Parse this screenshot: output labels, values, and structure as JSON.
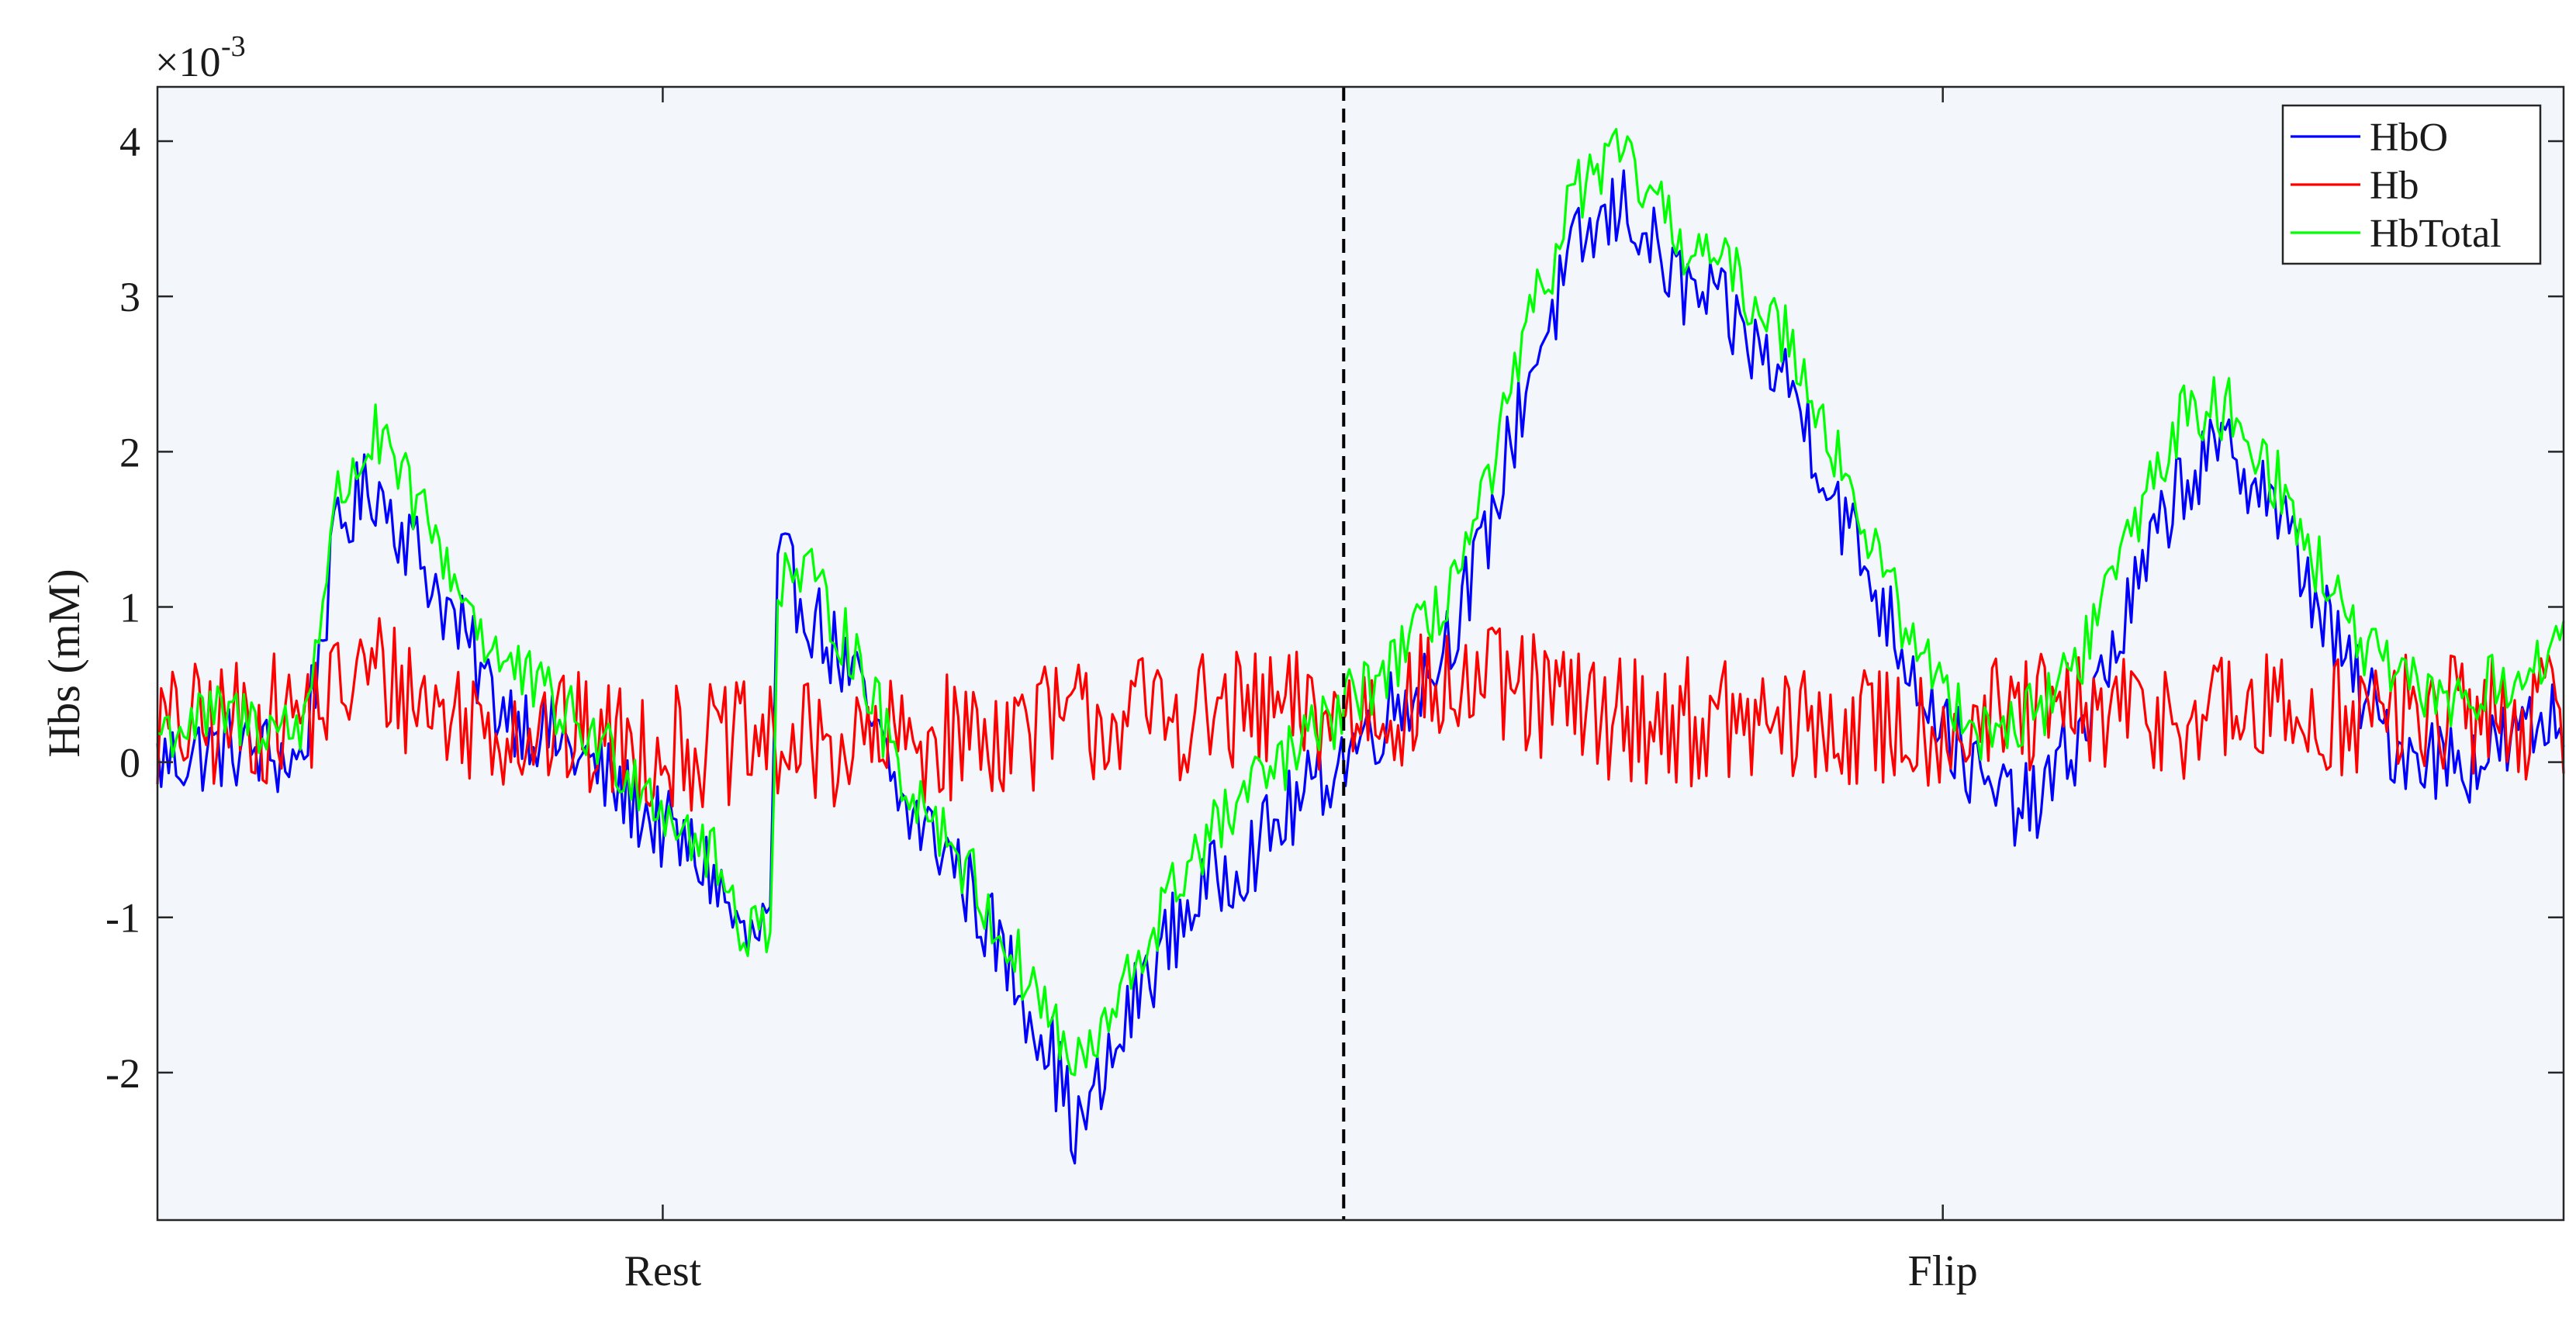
{
  "chart_data": {
    "type": "line",
    "title": "",
    "xlabel": "",
    "ylabel": "Hbs (mM)",
    "y_exponent_label": "×10",
    "y_exponent_power": "-3",
    "y_scale": 0.001,
    "ylim": [
      -2.95,
      4.35
    ],
    "y_ticks": [
      -2,
      -1,
      0,
      1,
      2,
      3,
      4
    ],
    "y_tick_labels": [
      "-2",
      "-1",
      "0",
      "1",
      "2",
      "3",
      "4"
    ],
    "x_range": [
      0,
      1
    ],
    "x_tick_positions": [
      0.21,
      0.742
    ],
    "x_tick_labels": [
      "Rest",
      "Flip"
    ],
    "event_marker_x": 0.493,
    "background_color": "#f3f6fb",
    "grid": false,
    "legend_position": "top-right",
    "series": [
      {
        "name": "HbO",
        "color": "#0000ff",
        "trend_points": [
          [
            0.0,
            0.0
          ],
          [
            0.03,
            0.1
          ],
          [
            0.06,
            0.0
          ],
          [
            0.075,
            1.5
          ],
          [
            0.09,
            1.8
          ],
          [
            0.11,
            1.3
          ],
          [
            0.14,
            0.4
          ],
          [
            0.17,
            0.1
          ],
          [
            0.2,
            -0.3
          ],
          [
            0.23,
            -0.7
          ],
          [
            0.245,
            -1.2
          ],
          [
            0.255,
            -1.0
          ],
          [
            0.258,
            1.3
          ],
          [
            0.27,
            1.0
          ],
          [
            0.29,
            0.5
          ],
          [
            0.31,
            -0.3
          ],
          [
            0.33,
            -0.6
          ],
          [
            0.35,
            -1.2
          ],
          [
            0.37,
            -1.8
          ],
          [
            0.382,
            -2.4
          ],
          [
            0.395,
            -2.0
          ],
          [
            0.41,
            -1.4
          ],
          [
            0.43,
            -0.9
          ],
          [
            0.46,
            -0.5
          ],
          [
            0.49,
            0.0
          ],
          [
            0.51,
            0.3
          ],
          [
            0.53,
            0.6
          ],
          [
            0.55,
            1.3
          ],
          [
            0.57,
            2.5
          ],
          [
            0.59,
            3.3
          ],
          [
            0.61,
            3.6
          ],
          [
            0.63,
            3.1
          ],
          [
            0.65,
            2.9
          ],
          [
            0.68,
            2.4
          ],
          [
            0.7,
            1.6
          ],
          [
            0.72,
            0.9
          ],
          [
            0.74,
            0.3
          ],
          [
            0.76,
            -0.2
          ],
          [
            0.78,
            -0.3
          ],
          [
            0.8,
            0.2
          ],
          [
            0.82,
            1.0
          ],
          [
            0.84,
            1.8
          ],
          [
            0.86,
            2.0
          ],
          [
            0.875,
            1.8
          ],
          [
            0.89,
            1.3
          ],
          [
            0.91,
            0.6
          ],
          [
            0.93,
            0.1
          ],
          [
            0.96,
            0.0
          ],
          [
            1.0,
            0.3
          ]
        ],
        "noise": 0.28
      },
      {
        "name": "Hb",
        "color": "#ff0000",
        "trend_points": [
          [
            0.0,
            0.2
          ],
          [
            0.06,
            0.3
          ],
          [
            0.09,
            0.6
          ],
          [
            0.12,
            0.3
          ],
          [
            0.2,
            0.1
          ],
          [
            0.3,
            0.1
          ],
          [
            0.4,
            0.3
          ],
          [
            0.49,
            0.3
          ],
          [
            0.55,
            0.5
          ],
          [
            0.6,
            0.3
          ],
          [
            0.7,
            0.2
          ],
          [
            0.8,
            0.3
          ],
          [
            0.9,
            0.3
          ],
          [
            1.0,
            0.3
          ]
        ],
        "noise": 0.42
      },
      {
        "name": "HbTotal",
        "color": "#00ff00",
        "trend_points": [
          [
            0.0,
            0.2
          ],
          [
            0.03,
            0.3
          ],
          [
            0.06,
            0.2
          ],
          [
            0.075,
            1.7
          ],
          [
            0.09,
            2.1
          ],
          [
            0.11,
            1.6
          ],
          [
            0.14,
            0.7
          ],
          [
            0.17,
            0.3
          ],
          [
            0.2,
            -0.1
          ],
          [
            0.23,
            -0.6
          ],
          [
            0.245,
            -1.1
          ],
          [
            0.255,
            -1.0
          ],
          [
            0.258,
            1.2
          ],
          [
            0.27,
            1.2
          ],
          [
            0.29,
            0.7
          ],
          [
            0.31,
            -0.1
          ],
          [
            0.33,
            -0.5
          ],
          [
            0.35,
            -1.1
          ],
          [
            0.37,
            -1.6
          ],
          [
            0.382,
            -2.0
          ],
          [
            0.395,
            -1.7
          ],
          [
            0.41,
            -1.2
          ],
          [
            0.43,
            -0.6
          ],
          [
            0.46,
            -0.1
          ],
          [
            0.49,
            0.3
          ],
          [
            0.51,
            0.6
          ],
          [
            0.53,
            0.9
          ],
          [
            0.55,
            1.6
          ],
          [
            0.57,
            2.8
          ],
          [
            0.59,
            3.7
          ],
          [
            0.61,
            3.9
          ],
          [
            0.63,
            3.4
          ],
          [
            0.65,
            3.2
          ],
          [
            0.68,
            2.7
          ],
          [
            0.7,
            1.9
          ],
          [
            0.72,
            1.1
          ],
          [
            0.74,
            0.5
          ],
          [
            0.76,
            0.2
          ],
          [
            0.78,
            0.3
          ],
          [
            0.8,
            0.7
          ],
          [
            0.82,
            1.5
          ],
          [
            0.84,
            2.2
          ],
          [
            0.86,
            2.3
          ],
          [
            0.875,
            2.0
          ],
          [
            0.89,
            1.5
          ],
          [
            0.91,
            0.9
          ],
          [
            0.93,
            0.5
          ],
          [
            0.96,
            0.4
          ],
          [
            1.0,
            0.7
          ]
        ],
        "noise": 0.22
      }
    ]
  }
}
